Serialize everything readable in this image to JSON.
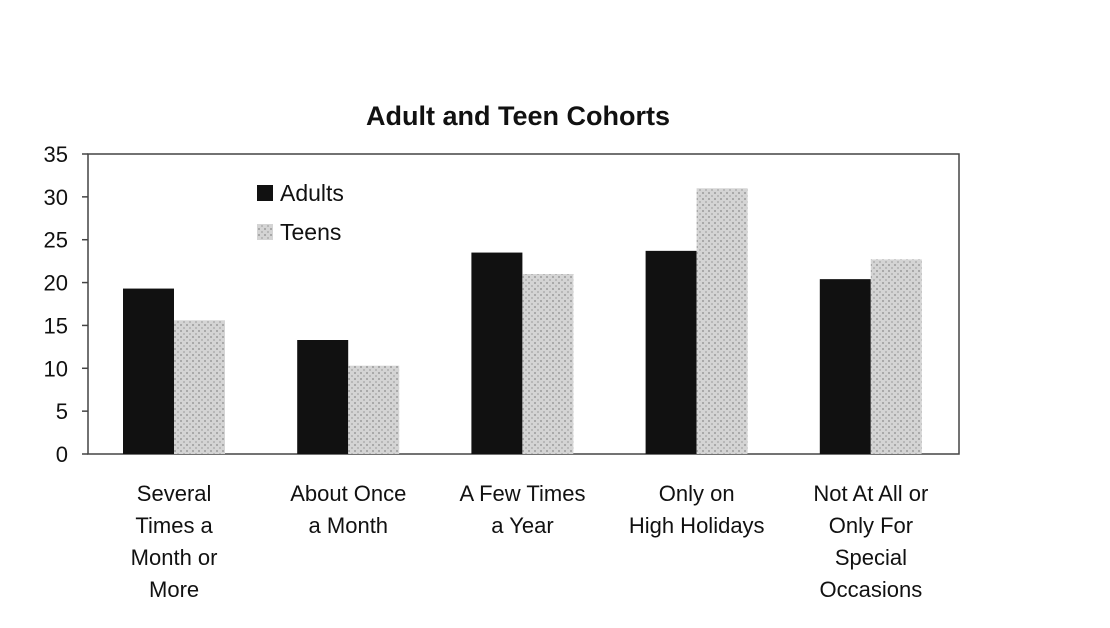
{
  "chart_data": {
    "type": "bar",
    "title": "Adult and Teen Cohorts",
    "xlabel": "",
    "ylabel": "",
    "ylim": [
      0,
      35
    ],
    "yticks": [
      0,
      5,
      10,
      15,
      20,
      25,
      30,
      35
    ],
    "grid": false,
    "legend_position": "top-left",
    "categories": [
      "Several Times a Month or More",
      "About Once a Month",
      "A Few Times a Year",
      "Only on High Holidays",
      "Not At All or Only For Special Occasions"
    ],
    "category_label_lines": [
      [
        "Several",
        "Times a",
        "Month or",
        "More"
      ],
      [
        "About Once",
        "a Month"
      ],
      [
        "A Few Times",
        "a Year"
      ],
      [
        "Only on",
        "High Holidays"
      ],
      [
        "Not At All or",
        "Only For",
        "Special",
        "Occasions"
      ]
    ],
    "series": [
      {
        "name": "Adults",
        "color": "#111111",
        "values": [
          19.3,
          13.3,
          23.5,
          23.7,
          20.4
        ]
      },
      {
        "name": "Teens",
        "color": "#d0d0d0",
        "values": [
          15.6,
          10.3,
          21.0,
          31.0,
          22.7
        ]
      }
    ]
  }
}
